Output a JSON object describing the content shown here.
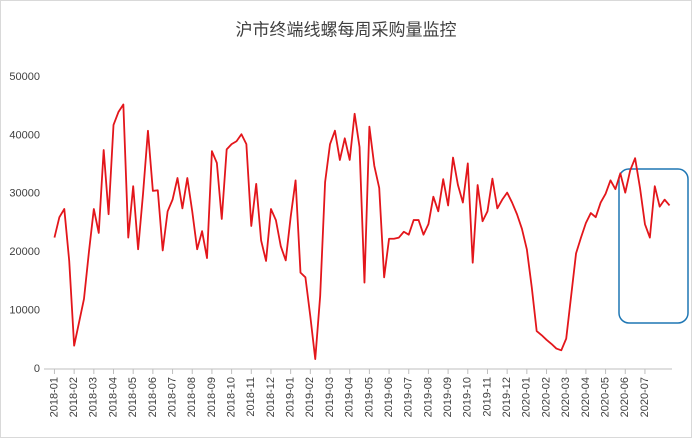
{
  "chart_data": {
    "type": "line",
    "title": "沪市终端线螺每周采购量监控",
    "categories": [
      "2018-01",
      null,
      null,
      null,
      "2018-02",
      null,
      null,
      null,
      "2018-03",
      null,
      null,
      null,
      "2018-04",
      null,
      null,
      null,
      "2018-05",
      null,
      null,
      null,
      "2018-06",
      null,
      null,
      null,
      "2018-07",
      null,
      null,
      null,
      "2018-08",
      null,
      null,
      null,
      "2018-09",
      null,
      null,
      null,
      "2018-10",
      null,
      null,
      null,
      "2018-11",
      null,
      null,
      null,
      "2018-12",
      null,
      null,
      null,
      "2019-01",
      null,
      null,
      null,
      "2019-02",
      null,
      null,
      null,
      "2019-03",
      null,
      null,
      null,
      "2019-04",
      null,
      null,
      null,
      "2019-05",
      null,
      null,
      null,
      "2019-06",
      null,
      null,
      null,
      "2019-07",
      null,
      null,
      null,
      "2019-08",
      null,
      null,
      null,
      "2019-09",
      null,
      null,
      null,
      "2019-10",
      null,
      null,
      null,
      "2019-11",
      null,
      null,
      null,
      "2019-12",
      null,
      null,
      null,
      "2020-01",
      null,
      null,
      null,
      "2020-02",
      null,
      null,
      null,
      "2020-03",
      null,
      null,
      null,
      "2020-04",
      null,
      null,
      null,
      "2020-05",
      null,
      null,
      null,
      "2020-06",
      null,
      null,
      null,
      "2020-07",
      null,
      null,
      null,
      null,
      null
    ],
    "series": [
      {
        "color": "#e3161b",
        "values": [
          22500,
          26000,
          27400,
          18500,
          4000,
          8000,
          12000,
          20000,
          27400,
          23300,
          37500,
          26500,
          41800,
          44000,
          45300,
          22500,
          31300,
          20500,
          30000,
          40800,
          30500,
          30600,
          20300,
          27000,
          29000,
          32700,
          27500,
          32700,
          27000,
          20500,
          23600,
          19000,
          37300,
          35300,
          25700,
          37600,
          38500,
          39000,
          40200,
          38500,
          24500,
          31700,
          22000,
          18500,
          27400,
          25500,
          21000,
          18600,
          26000,
          32300,
          16500,
          15700,
          9000,
          1700,
          12500,
          32000,
          38500,
          40800,
          35800,
          39500,
          35800,
          43700,
          38000,
          14800,
          41500,
          34800,
          31000,
          15700,
          22300,
          22300,
          22500,
          23500,
          23000,
          25500,
          25500,
          23000,
          24800,
          29500,
          27000,
          32500,
          28000,
          36200,
          31500,
          28500,
          35200,
          18200,
          31500,
          25300,
          27000,
          32600,
          27500,
          29000,
          30200,
          28500,
          26500,
          24000,
          20500,
          14000,
          6500,
          5800,
          5000,
          4300,
          3500,
          3200,
          5200,
          12500,
          19800,
          22500,
          25000,
          26700,
          26000,
          28500,
          30000,
          32300,
          30800,
          33500,
          30200,
          34000,
          36100,
          31000,
          24800,
          22500,
          31300,
          27800,
          29000,
          28000
        ]
      }
    ],
    "ylim": [
      0,
      50000
    ],
    "yticks": [
      0,
      10000,
      20000,
      30000,
      40000,
      50000
    ],
    "grid": false
  }
}
